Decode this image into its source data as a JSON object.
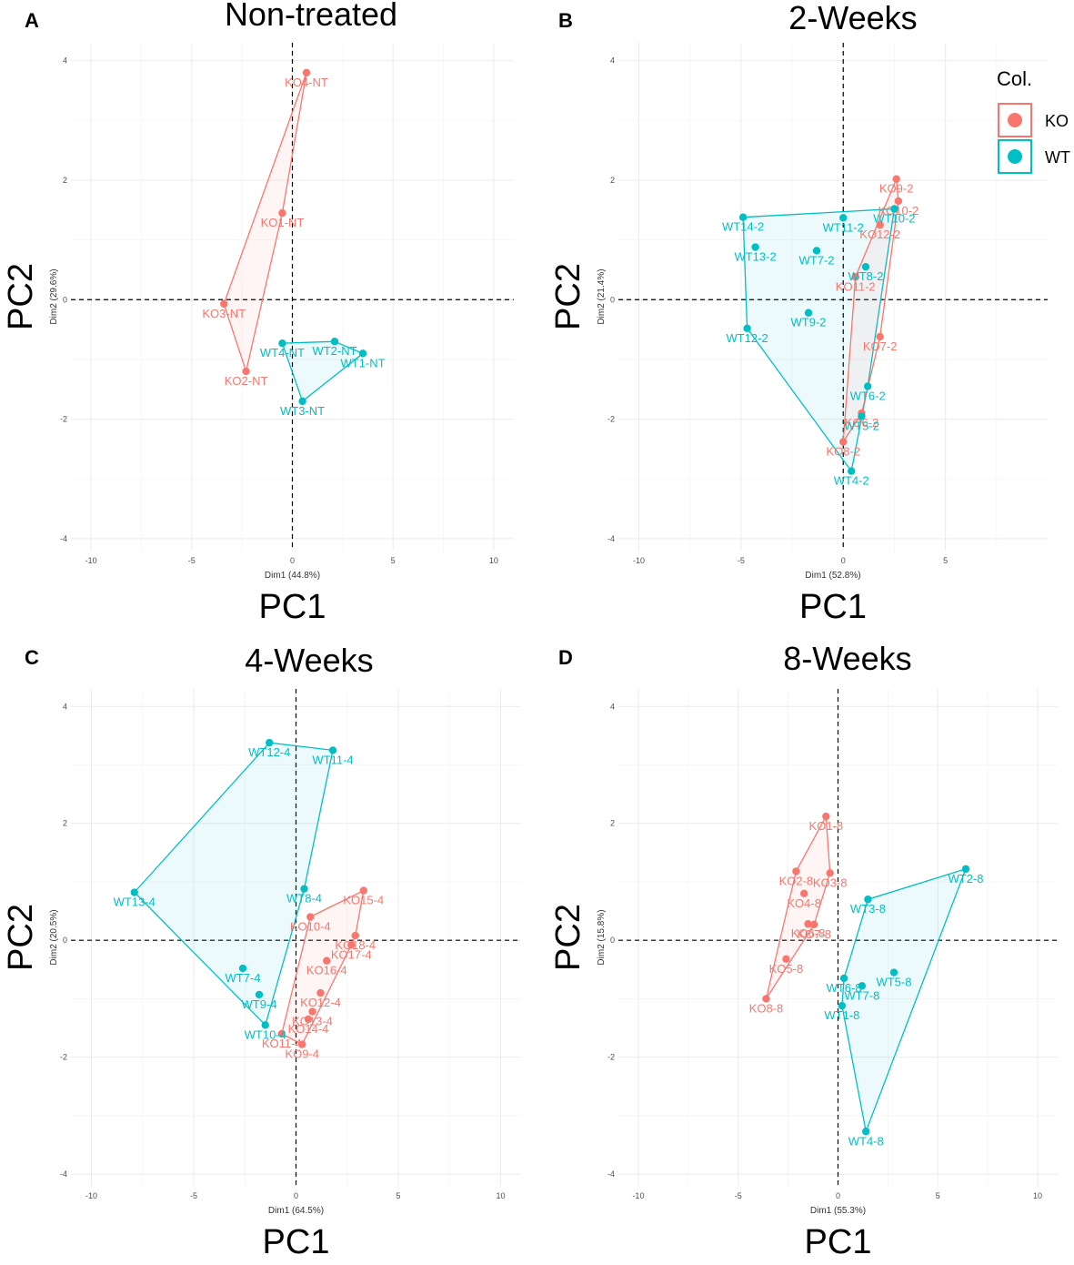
{
  "colors": {
    "KO": "#F8766D",
    "WT": "#00BFC4"
  },
  "legend": {
    "title": "Col.",
    "entries": [
      {
        "group": "KO",
        "label": "KO"
      },
      {
        "group": "WT",
        "label": "WT"
      }
    ]
  },
  "chart_data": [
    {
      "type": "scatter",
      "letter": "A",
      "title": "Non-treated",
      "xlabel_small": "Dim1 (44.8%)",
      "ylabel_small": "Dim2 (29.6%)",
      "xlabel": "PC1",
      "ylabel": "PC2",
      "xlim": [
        -11,
        11
      ],
      "ylim": [
        -4.2,
        4.3
      ],
      "xticks": [
        -10,
        -5,
        0,
        5,
        10
      ],
      "yticks": [
        -4,
        -2,
        0,
        2,
        4
      ],
      "points": [
        {
          "label": "KO4-NT",
          "group": "KO",
          "x": 0.7,
          "y": 3.8
        },
        {
          "label": "KO1-NT",
          "group": "KO",
          "x": -0.5,
          "y": 1.45
        },
        {
          "label": "KO3-NT",
          "group": "KO",
          "x": -3.4,
          "y": -0.07
        },
        {
          "label": "KO2-NT",
          "group": "KO",
          "x": -2.3,
          "y": -1.2
        },
        {
          "label": "WT2-NT",
          "group": "WT",
          "x": 2.1,
          "y": -0.7
        },
        {
          "label": "WT4-NT",
          "group": "WT",
          "x": -0.5,
          "y": -0.73
        },
        {
          "label": "WT1-NT",
          "group": "WT",
          "x": 3.5,
          "y": -0.9
        },
        {
          "label": "WT3-NT",
          "group": "WT",
          "x": 0.5,
          "y": -1.7
        }
      ]
    },
    {
      "type": "scatter",
      "letter": "B",
      "title": "2-Weeks",
      "xlabel_small": "Dim1 (52.8%)",
      "ylabel_small": "Dim2 (21.4%)",
      "xlabel": "PC1",
      "ylabel": "PC2",
      "xlim": [
        -11,
        10
      ],
      "ylim": [
        -4.2,
        4.3
      ],
      "xticks": [
        -10,
        -5,
        0,
        5
      ],
      "yticks": [
        -4,
        -2,
        0,
        2,
        4
      ],
      "points": [
        {
          "label": "KO9-2",
          "group": "KO",
          "x": 2.6,
          "y": 2.02
        },
        {
          "label": "KO10-2",
          "group": "KO",
          "x": 2.7,
          "y": 1.65
        },
        {
          "label": "KO12-2",
          "group": "KO",
          "x": 1.8,
          "y": 1.25
        },
        {
          "label": "KO11-2",
          "group": "KO",
          "x": 0.6,
          "y": 0.38
        },
        {
          "label": "KO7-2",
          "group": "KO",
          "x": 1.8,
          "y": -0.62
        },
        {
          "label": "KO6-2",
          "group": "KO",
          "x": 0.9,
          "y": -1.9
        },
        {
          "label": "KO8-2",
          "group": "KO",
          "x": 0.0,
          "y": -2.38
        },
        {
          "label": "WT14-2",
          "group": "WT",
          "x": -4.9,
          "y": 1.38
        },
        {
          "label": "WT11-2",
          "group": "WT",
          "x": 0.0,
          "y": 1.37
        },
        {
          "label": "WT10-2",
          "group": "WT",
          "x": 2.5,
          "y": 1.52
        },
        {
          "label": "WT13-2",
          "group": "WT",
          "x": -4.3,
          "y": 0.88
        },
        {
          "label": "WT7-2",
          "group": "WT",
          "x": -1.3,
          "y": 0.82
        },
        {
          "label": "WT8-2",
          "group": "WT",
          "x": 1.1,
          "y": 0.55
        },
        {
          "label": "WT9-2",
          "group": "WT",
          "x": -1.7,
          "y": -0.22
        },
        {
          "label": "WT12-2",
          "group": "WT",
          "x": -4.7,
          "y": -0.48
        },
        {
          "label": "WT6-2",
          "group": "WT",
          "x": 1.2,
          "y": -1.45
        },
        {
          "label": "WT5-2",
          "group": "WT",
          "x": 0.9,
          "y": -1.95
        },
        {
          "label": "WT4-2",
          "group": "WT",
          "x": 0.4,
          "y": -2.87
        }
      ]
    },
    {
      "type": "scatter",
      "letter": "C",
      "title": "4-Weeks",
      "xlabel_small": "Dim1 (64.5%)",
      "ylabel_small": "Dim2 (20.5%)",
      "xlabel": "PC1",
      "ylabel": "PC2",
      "xlim": [
        -11,
        11
      ],
      "ylim": [
        -4.2,
        4.3
      ],
      "xticks": [
        -10,
        -5,
        0,
        5,
        10
      ],
      "yticks": [
        -4,
        -2,
        0,
        2,
        4
      ],
      "points": [
        {
          "label": "KO15-4",
          "group": "KO",
          "x": 3.3,
          "y": 0.85
        },
        {
          "label": "KO10-4",
          "group": "KO",
          "x": 0.7,
          "y": 0.4
        },
        {
          "label": "KO18-4",
          "group": "KO",
          "x": 2.9,
          "y": 0.08
        },
        {
          "label": "KO17-4",
          "group": "KO",
          "x": 2.7,
          "y": -0.08
        },
        {
          "label": "KO16-4",
          "group": "KO",
          "x": 1.5,
          "y": -0.35
        },
        {
          "label": "KO12-4",
          "group": "KO",
          "x": 1.2,
          "y": -0.9
        },
        {
          "label": "KO13-4",
          "group": "KO",
          "x": 0.8,
          "y": -1.22
        },
        {
          "label": "KO14-4",
          "group": "KO",
          "x": 0.6,
          "y": -1.35
        },
        {
          "label": "KO11-4",
          "group": "KO",
          "x": -0.7,
          "y": -1.6
        },
        {
          "label": "KO9-4",
          "group": "KO",
          "x": 0.3,
          "y": -1.78
        },
        {
          "label": "WT12-4",
          "group": "WT",
          "x": -1.3,
          "y": 3.38
        },
        {
          "label": "WT11-4",
          "group": "WT",
          "x": 1.8,
          "y": 3.25
        },
        {
          "label": "WT8-4",
          "group": "WT",
          "x": 0.4,
          "y": 0.88
        },
        {
          "label": "WT13-4",
          "group": "WT",
          "x": -7.9,
          "y": 0.82
        },
        {
          "label": "WT7-4",
          "group": "WT",
          "x": -2.6,
          "y": -0.48
        },
        {
          "label": "WT9-4",
          "group": "WT",
          "x": -1.8,
          "y": -0.93
        },
        {
          "label": "WT10-4",
          "group": "WT",
          "x": -1.5,
          "y": -1.45
        }
      ]
    },
    {
      "type": "scatter",
      "letter": "D",
      "title": "8-Weeks",
      "xlabel_small": "Dim1 (55.3%)",
      "ylabel_small": "Dim2 (15.8%)",
      "xlabel": "PC1",
      "ylabel": "PC2",
      "xlim": [
        -11,
        11
      ],
      "ylim": [
        -4.2,
        4.3
      ],
      "xticks": [
        -10,
        -5,
        0,
        5,
        10
      ],
      "yticks": [
        -4,
        -2,
        0,
        2,
        4
      ],
      "points": [
        {
          "label": "KO1-8",
          "group": "KO",
          "x": -0.6,
          "y": 2.12
        },
        {
          "label": "KO2-8",
          "group": "KO",
          "x": -2.1,
          "y": 1.18
        },
        {
          "label": "KO3-8",
          "group": "KO",
          "x": -0.4,
          "y": 1.15
        },
        {
          "label": "KO4-8",
          "group": "KO",
          "x": -1.7,
          "y": 0.8
        },
        {
          "label": "KO6-8",
          "group": "KO",
          "x": -1.5,
          "y": 0.28
        },
        {
          "label": "KO7-8",
          "group": "KO",
          "x": -1.2,
          "y": 0.27
        },
        {
          "label": "KO5-8",
          "group": "KO",
          "x": -2.6,
          "y": -0.32
        },
        {
          "label": "KO8-8",
          "group": "KO",
          "x": -3.6,
          "y": -1.0
        },
        {
          "label": "WT2-8",
          "group": "WT",
          "x": 6.4,
          "y": 1.22
        },
        {
          "label": "WT3-8",
          "group": "WT",
          "x": 1.5,
          "y": 0.7
        },
        {
          "label": "WT5-8",
          "group": "WT",
          "x": 2.8,
          "y": -0.55
        },
        {
          "label": "WT6-8",
          "group": "WT",
          "x": 0.3,
          "y": -0.65
        },
        {
          "label": "WT7-8",
          "group": "WT",
          "x": 1.2,
          "y": -0.78
        },
        {
          "label": "WT1-8",
          "group": "WT",
          "x": 0.2,
          "y": -1.12
        },
        {
          "label": "WT4-8",
          "group": "WT",
          "x": 1.4,
          "y": -3.27
        }
      ]
    }
  ]
}
